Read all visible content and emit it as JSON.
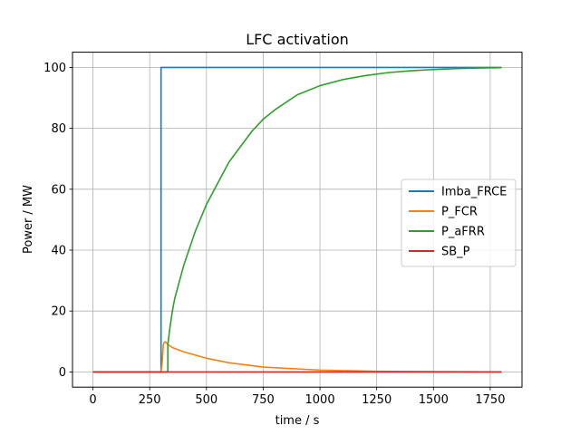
{
  "chart_data": {
    "type": "line",
    "title": "LFC activation",
    "xlabel": "time / s",
    "ylabel": "Power / MW",
    "xlim": [
      -90,
      1890
    ],
    "ylim": [
      -5,
      105
    ],
    "xticks": [
      0,
      250,
      500,
      750,
      1000,
      1250,
      1500,
      1750
    ],
    "yticks": [
      0,
      20,
      40,
      60,
      80,
      100
    ],
    "grid": true,
    "legend_position": "center-right",
    "series": [
      {
        "name": "Imba_FRCE",
        "color": "#1f77b4",
        "x": [
          0,
          299,
          300,
          300,
          1800
        ],
        "y": [
          0,
          0,
          0,
          100,
          100
        ]
      },
      {
        "name": "P_FCR",
        "color": "#ff7f0e",
        "x": [
          0,
          300,
          305,
          310,
          315,
          320,
          330,
          350,
          400,
          500,
          600,
          750,
          1000,
          1250,
          1500,
          1800
        ],
        "y": [
          0,
          0,
          3,
          9,
          9.8,
          9.9,
          9,
          8,
          6.6,
          4.5,
          3,
          1.6,
          0.6,
          0.2,
          0.1,
          0
        ]
      },
      {
        "name": "P_aFRR",
        "color": "#2ca02c",
        "x": [
          0,
          330,
          330,
          340,
          350,
          355,
          360,
          400,
          450,
          500,
          600,
          700,
          750,
          800,
          900,
          1000,
          1100,
          1200,
          1300,
          1400,
          1500,
          1600,
          1700,
          1800
        ],
        "y": [
          0,
          0,
          9,
          15,
          20,
          22,
          24,
          35,
          46,
          55,
          69,
          79,
          83,
          86,
          91,
          94,
          96,
          97.3,
          98.3,
          98.9,
          99.3,
          99.6,
          99.8,
          99.9
        ]
      },
      {
        "name": "SB_P",
        "color": "#d62728",
        "x": [
          0,
          1800
        ],
        "y": [
          0,
          0
        ]
      }
    ]
  }
}
